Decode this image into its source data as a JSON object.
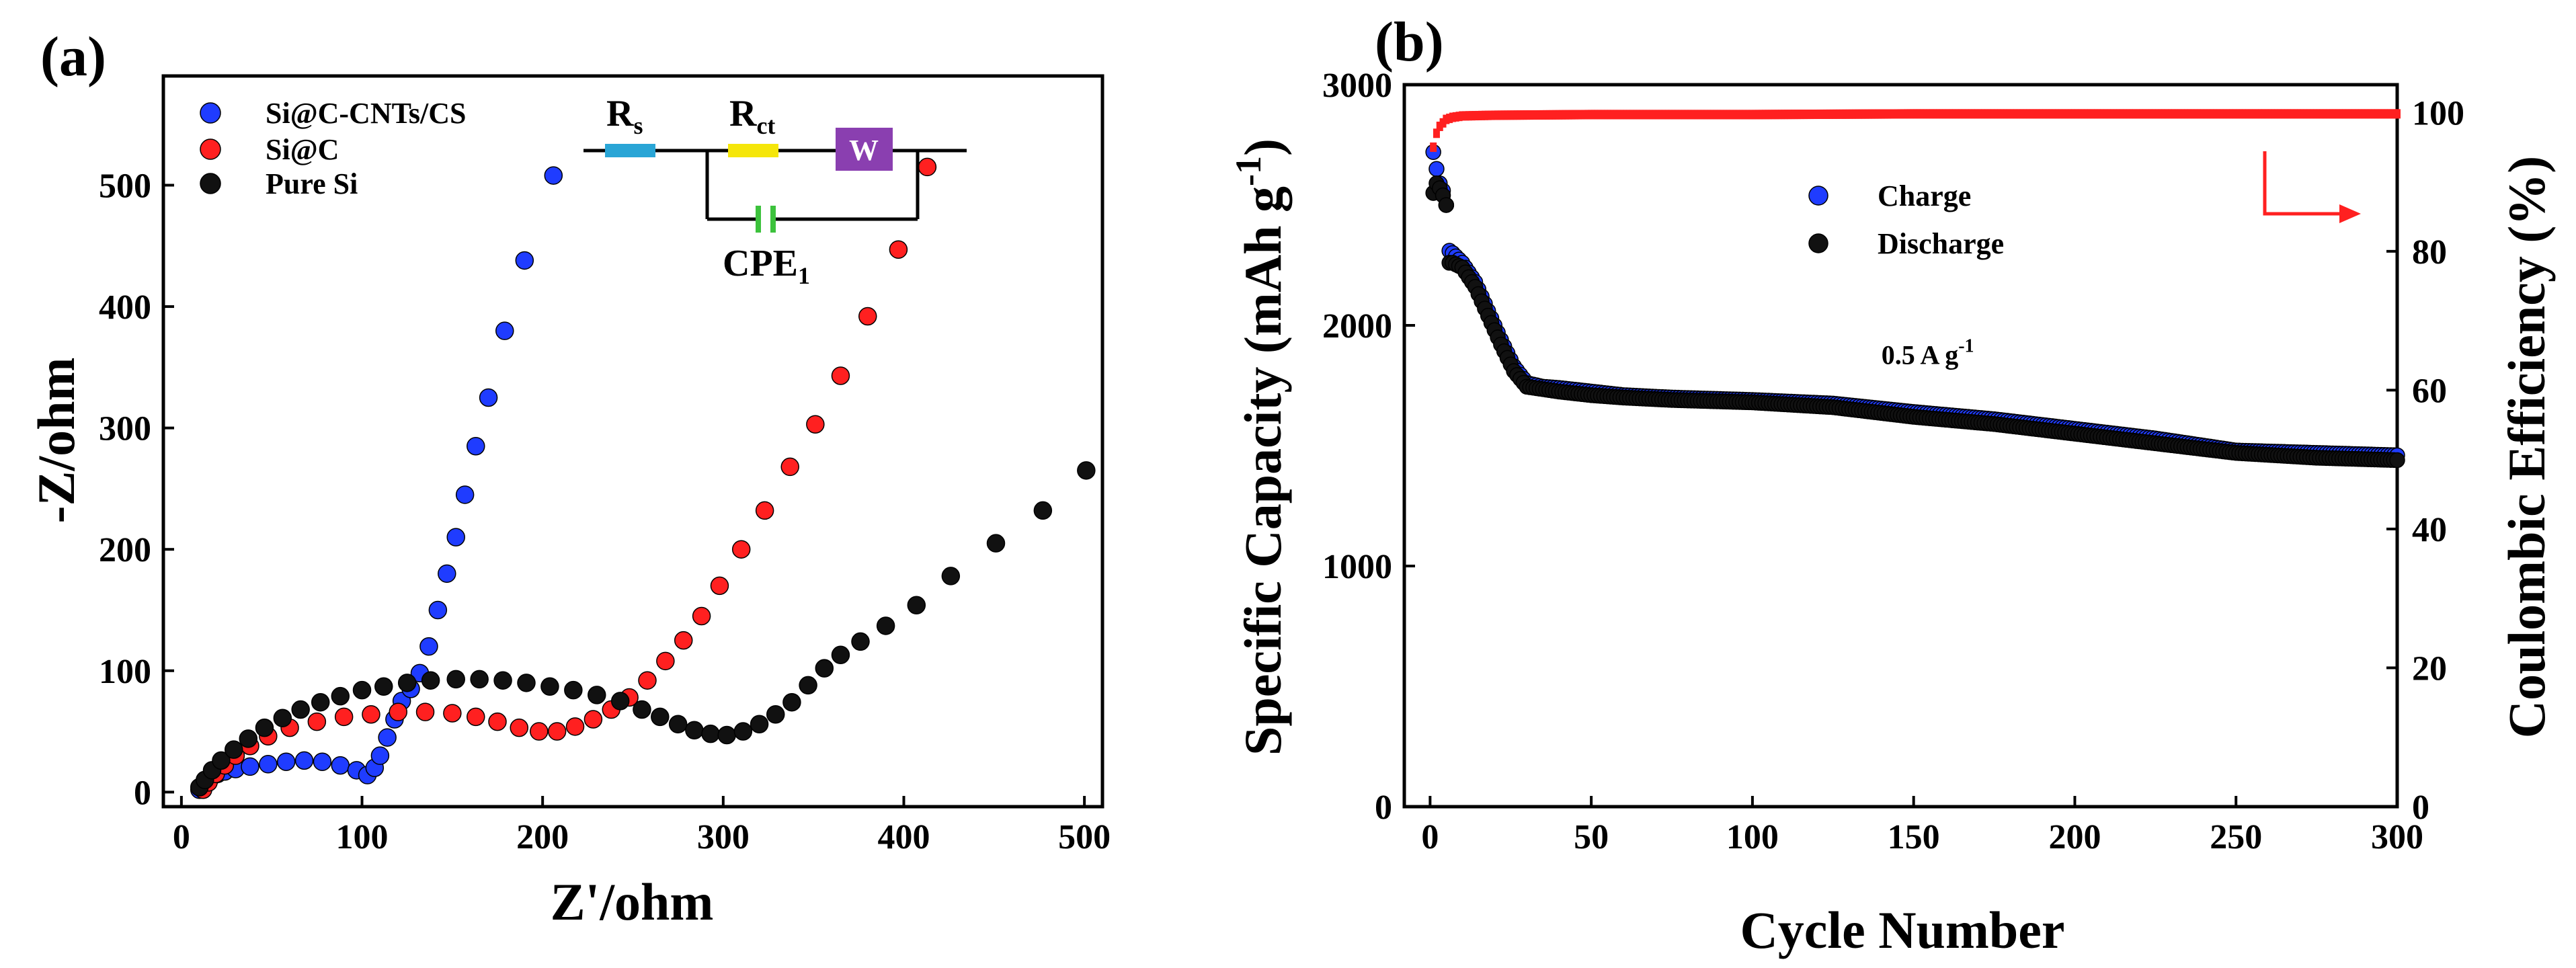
{
  "panels": {
    "a": "(a)",
    "b": "(b)"
  },
  "colors": {
    "blue": "#1f3cff",
    "red": "#ff2020",
    "black": "#111111",
    "cyan": "#29a5d6",
    "yellow": "#f5e60a",
    "purple": "#8a3fb0",
    "green": "#3cc23c"
  },
  "chart_data": [
    {
      "type": "scatter",
      "title": "",
      "xlabel": "Z'/ohm",
      "ylabel": "-Z/ohm",
      "xlim": [
        -10,
        510
      ],
      "ylim": [
        -12,
        590
      ],
      "xticks": [
        0,
        100,
        200,
        300,
        400,
        500
      ],
      "yticks": [
        0,
        100,
        200,
        300,
        400,
        500
      ],
      "legend": {
        "placement": "top-left"
      },
      "inset": {
        "rs": "R",
        "rs_sub": "s",
        "rct": "R",
        "rct_sub": "ct",
        "w": "W",
        "cpe": "CPE",
        "cpe_sub": "1"
      },
      "series": [
        {
          "name": "Si@C-CNTs/CS",
          "color": "blue",
          "points": [
            [
              10,
              2
            ],
            [
              12,
              6
            ],
            [
              14,
              10
            ],
            [
              17,
              13
            ],
            [
              20,
              15
            ],
            [
              24,
              17
            ],
            [
              30,
              19
            ],
            [
              38,
              21
            ],
            [
              48,
              23
            ],
            [
              58,
              25
            ],
            [
              68,
              26
            ],
            [
              78,
              25
            ],
            [
              88,
              22
            ],
            [
              97,
              18
            ],
            [
              103,
              14
            ],
            [
              107,
              20
            ],
            [
              110,
              30
            ],
            [
              114,
              45
            ],
            [
              118,
              60
            ],
            [
              122,
              75
            ],
            [
              127,
              85
            ],
            [
              132,
              98
            ],
            [
              137,
              120
            ],
            [
              142,
              150
            ],
            [
              147,
              180
            ],
            [
              152,
              210
            ],
            [
              157,
              245
            ],
            [
              163,
              285
            ],
            [
              170,
              325
            ],
            [
              179,
              380
            ],
            [
              190,
              438
            ],
            [
              206,
              508
            ]
          ]
        },
        {
          "name": "Si@C",
          "color": "red",
          "points": [
            [
              12,
              2
            ],
            [
              15,
              8
            ],
            [
              19,
              15
            ],
            [
              24,
              22
            ],
            [
              30,
              30
            ],
            [
              38,
              38
            ],
            [
              48,
              46
            ],
            [
              60,
              53
            ],
            [
              75,
              58
            ],
            [
              90,
              62
            ],
            [
              105,
              64
            ],
            [
              120,
              66
            ],
            [
              135,
              66
            ],
            [
              150,
              65
            ],
            [
              163,
              62
            ],
            [
              175,
              58
            ],
            [
              187,
              53
            ],
            [
              198,
              50
            ],
            [
              208,
              50
            ],
            [
              218,
              54
            ],
            [
              228,
              60
            ],
            [
              238,
              68
            ],
            [
              248,
              78
            ],
            [
              258,
              92
            ],
            [
              268,
              108
            ],
            [
              278,
              125
            ],
            [
              288,
              145
            ],
            [
              298,
              170
            ],
            [
              310,
              200
            ],
            [
              323,
              232
            ],
            [
              337,
              268
            ],
            [
              351,
              303
            ],
            [
              365,
              343
            ],
            [
              380,
              392
            ],
            [
              397,
              447
            ],
            [
              413,
              515
            ]
          ]
        },
        {
          "name": "Pure Si",
          "color": "black",
          "points": [
            [
              10,
              4
            ],
            [
              13,
              10
            ],
            [
              17,
              18
            ],
            [
              22,
              26
            ],
            [
              29,
              35
            ],
            [
              37,
              44
            ],
            [
              46,
              53
            ],
            [
              56,
              61
            ],
            [
              66,
              68
            ],
            [
              77,
              74
            ],
            [
              88,
              79
            ],
            [
              100,
              84
            ],
            [
              112,
              87
            ],
            [
              125,
              90
            ],
            [
              138,
              92
            ],
            [
              152,
              93
            ],
            [
              165,
              93
            ],
            [
              178,
              92
            ],
            [
              191,
              90
            ],
            [
              204,
              87
            ],
            [
              217,
              84
            ],
            [
              230,
              80
            ],
            [
              243,
              75
            ],
            [
              255,
              68
            ],
            [
              265,
              62
            ],
            [
              275,
              56
            ],
            [
              284,
              51
            ],
            [
              293,
              48
            ],
            [
              302,
              47
            ],
            [
              311,
              50
            ],
            [
              320,
              56
            ],
            [
              329,
              64
            ],
            [
              338,
              74
            ],
            [
              347,
              88
            ],
            [
              356,
              102
            ],
            [
              365,
              113
            ],
            [
              376,
              124
            ],
            [
              390,
              137
            ],
            [
              407,
              154
            ],
            [
              426,
              178
            ],
            [
              451,
              205
            ],
            [
              477,
              232
            ],
            [
              501,
              265
            ]
          ]
        }
      ]
    },
    {
      "type": "scatter",
      "title": "",
      "xlabel": "Cycle Number",
      "ylabel": "Specific Capacity (mAh g",
      "ylabel_sup": "-1",
      "ylabel_end": ")",
      "y2label": "Coulombic Efficiency (%)",
      "xlim": [
        -8,
        300
      ],
      "ylim": [
        0,
        3000
      ],
      "y2lim": [
        0,
        104
      ],
      "xticks": [
        0,
        50,
        100,
        150,
        200,
        250,
        300
      ],
      "yticks": [
        0,
        1000,
        2000,
        3000
      ],
      "y2ticks": [
        0,
        20,
        40,
        60,
        80,
        100
      ],
      "legend": {
        "placement": "top-center"
      },
      "annotation": {
        "text": "0.5 A g",
        "sup": "-1",
        "x": 140,
        "y": 1840
      },
      "arrow_to": "right-axis",
      "series": [
        {
          "name": "Charge",
          "color": "blue",
          "axis": "left",
          "points": [
            [
              1,
              2720
            ],
            [
              2,
              2650
            ],
            [
              3,
              2590
            ],
            [
              4,
              2560
            ],
            [
              5,
              2500
            ],
            [
              6,
              2310
            ],
            [
              7,
              2300
            ],
            [
              10,
              2260
            ],
            [
              14,
              2180
            ],
            [
              18,
              2060
            ],
            [
              22,
              1940
            ],
            [
              26,
              1830
            ],
            [
              30,
              1760
            ],
            [
              35,
              1745
            ],
            [
              40,
              1740
            ],
            [
              50,
              1725
            ],
            [
              60,
              1710
            ],
            [
              75,
              1700
            ],
            [
              100,
              1690
            ],
            [
              125,
              1675
            ],
            [
              150,
              1640
            ],
            [
              175,
              1610
            ],
            [
              200,
              1570
            ],
            [
              225,
              1530
            ],
            [
              250,
              1480
            ],
            [
              275,
              1470
            ],
            [
              300,
              1460
            ]
          ]
        },
        {
          "name": "Discharge",
          "color": "black",
          "axis": "left",
          "points": [
            [
              1,
              2550
            ],
            [
              2,
              2590
            ],
            [
              3,
              2570
            ],
            [
              4,
              2540
            ],
            [
              5,
              2500
            ],
            [
              6,
              2260
            ],
            [
              7,
              2260
            ],
            [
              10,
              2240
            ],
            [
              14,
              2160
            ],
            [
              18,
              2040
            ],
            [
              22,
              1920
            ],
            [
              26,
              1810
            ],
            [
              30,
              1745
            ],
            [
              35,
              1735
            ],
            [
              40,
              1725
            ],
            [
              50,
              1710
            ],
            [
              60,
              1700
            ],
            [
              75,
              1690
            ],
            [
              100,
              1680
            ],
            [
              125,
              1660
            ],
            [
              150,
              1620
            ],
            [
              175,
              1590
            ],
            [
              200,
              1550
            ],
            [
              225,
              1510
            ],
            [
              250,
              1470
            ],
            [
              275,
              1450
            ],
            [
              300,
              1440
            ]
          ]
        },
        {
          "name": "Coulombic Efficiency",
          "color": "red",
          "axis": "right",
          "points": [
            [
              1,
              95
            ],
            [
              2,
              97
            ],
            [
              3,
              98
            ],
            [
              4,
              98.5
            ],
            [
              5,
              99
            ],
            [
              7,
              99.3
            ],
            [
              10,
              99.5
            ],
            [
              20,
              99.6
            ],
            [
              50,
              99.7
            ],
            [
              100,
              99.7
            ],
            [
              150,
              99.8
            ],
            [
              200,
              99.8
            ],
            [
              250,
              99.8
            ],
            [
              300,
              99.8
            ]
          ]
        }
      ]
    }
  ]
}
